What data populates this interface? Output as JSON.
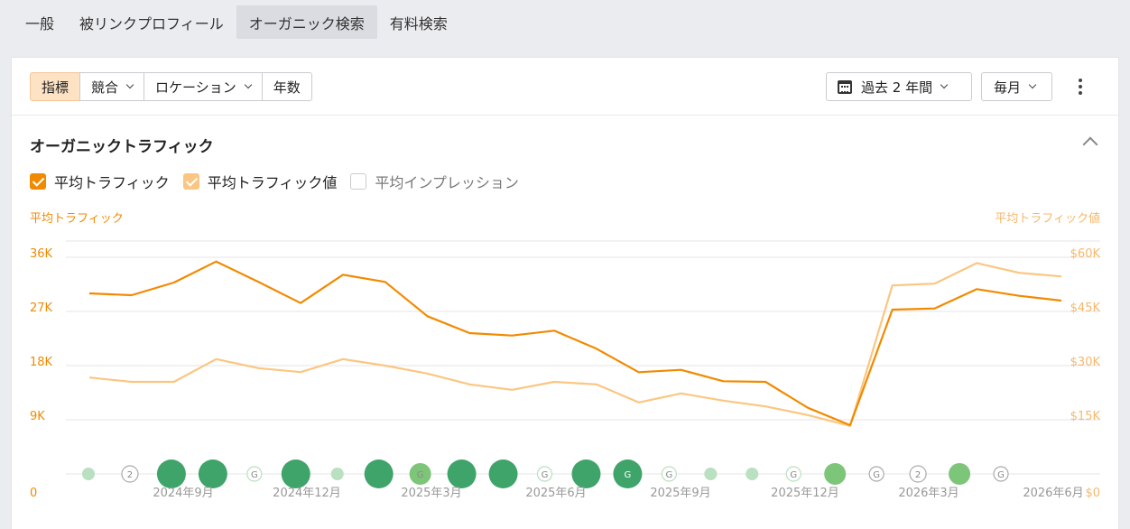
{
  "tabs": [
    "一般",
    "被リンクプロフィール",
    "オーガニック検索",
    "有料検索"
  ],
  "active_tab": 2,
  "toolbar": {
    "segments": [
      "指標",
      "競合",
      "ロケーション",
      "年数"
    ],
    "date_range": "過去 2 年間",
    "period": "毎月"
  },
  "section": {
    "title": "オーガニックトラフィック",
    "legend": [
      {
        "label": "平均トラフィック",
        "checked": true,
        "color": "#f28a00"
      },
      {
        "label": "平均トラフィック値",
        "checked": true,
        "color": "#fbc681"
      },
      {
        "label": "平均インプレッション",
        "checked": false,
        "color": "#c9cbd0"
      }
    ]
  },
  "chart_data": {
    "type": "line",
    "left_axis_label": "平均トラフィック",
    "right_axis_label": "平均トラフィック値",
    "left_ticks": [
      "0",
      "9K",
      "18K",
      "27K",
      "36K"
    ],
    "right_ticks": [
      "$0",
      "$15K",
      "$30K",
      "$45K",
      "$60K"
    ],
    "left_ylim": [
      0,
      36000
    ],
    "right_ylim": [
      0,
      60000
    ],
    "x_labels": [
      "2024年9月",
      "2024年12月",
      "2025年3月",
      "2025年6月",
      "2025年9月",
      "2025年12月",
      "2026年3月",
      "2026年6月"
    ],
    "series": [
      {
        "name": "平均トラフィック",
        "color": "#f28a00",
        "axis": "left",
        "values": [
          30000,
          29700,
          31800,
          35300,
          31900,
          28400,
          33100,
          31900,
          26200,
          23400,
          23000,
          23800,
          20800,
          16900,
          17300,
          15400,
          15300,
          11000,
          8100,
          27300,
          27500,
          30700,
          29600,
          28800
        ]
      },
      {
        "name": "平均トラフィック値",
        "color": "#fbc681",
        "axis": "right",
        "values": [
          26700,
          25500,
          25500,
          31800,
          29300,
          28200,
          31800,
          30000,
          27800,
          24800,
          23300,
          25500,
          24800,
          19800,
          22300,
          20300,
          18700,
          16300,
          13300,
          52200,
          52700,
          58400,
          55700,
          54700
        ]
      }
    ],
    "markers": [
      "light",
      "g2",
      "dark",
      "dark",
      "g",
      "dark2",
      "light",
      "dark",
      "mid-g",
      "dark",
      "dark",
      "g",
      "dark",
      "dark-g",
      "g",
      "light",
      "light",
      "g",
      "mid",
      "g-white",
      "g2",
      "mid",
      "g-white"
    ]
  }
}
